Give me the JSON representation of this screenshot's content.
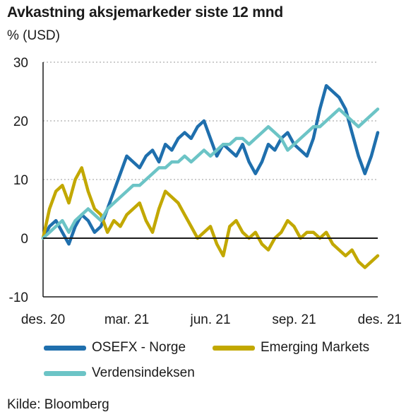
{
  "chart_data": {
    "type": "line",
    "title": "Avkastning aksjemarkeder siste 12 mnd",
    "ylabel": "% (USD)",
    "ylim": [
      -10,
      30
    ],
    "yticks": [
      "30",
      "20",
      "10",
      "0",
      "-10"
    ],
    "ytick_values": [
      30,
      20,
      10,
      0,
      -10
    ],
    "xticks": [
      "des. 20",
      "mar. 21",
      "jun. 21",
      "sep. 21",
      "des. 21"
    ],
    "x_count": 53,
    "grid": "horizontal dotted",
    "legend_position": "bottom",
    "source": "Kilde: Bloomberg",
    "series": [
      {
        "name": "OSEFX - Norge",
        "color": "#1f6fad",
        "values": [
          0,
          2,
          3,
          1,
          -1,
          2,
          4,
          3,
          1,
          2,
          5,
          8,
          11,
          14,
          13,
          12,
          14,
          15,
          13,
          16,
          15,
          17,
          18,
          17,
          19,
          20,
          17,
          14,
          16,
          15,
          14,
          16,
          13,
          11,
          13,
          16,
          15,
          17,
          18,
          16,
          15,
          14,
          17,
          22,
          26,
          25,
          24,
          22,
          18,
          14,
          11,
          14,
          18
        ]
      },
      {
        "name": "Emerging Markets",
        "color": "#c2a800",
        "values": [
          0,
          5,
          8,
          9,
          6,
          10,
          12,
          8,
          5,
          4,
          1,
          3,
          2,
          4,
          5,
          6,
          3,
          1,
          5,
          8,
          7,
          6,
          4,
          2,
          0,
          1,
          2,
          -1,
          -3,
          2,
          3,
          1,
          0,
          1,
          -1,
          -2,
          0,
          1,
          3,
          2,
          0,
          1,
          1,
          0,
          1,
          -1,
          -2,
          -3,
          -2,
          -4,
          -5,
          -4,
          -3
        ]
      },
      {
        "name": "Verdensindeksen",
        "color": "#6cc4c6",
        "values": [
          0,
          1,
          2,
          3,
          1,
          3,
          4,
          5,
          4,
          3,
          5,
          6,
          7,
          8,
          9,
          9,
          10,
          11,
          12,
          12,
          13,
          13,
          14,
          13,
          14,
          15,
          14,
          15,
          16,
          16,
          17,
          17,
          16,
          17,
          18,
          19,
          18,
          17,
          15,
          16,
          17,
          18,
          19,
          19,
          20,
          21,
          22,
          21,
          20,
          19,
          20,
          21,
          22
        ]
      }
    ]
  }
}
